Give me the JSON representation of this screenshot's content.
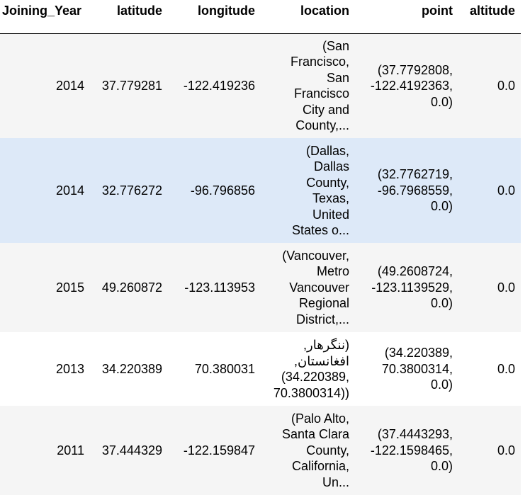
{
  "table": {
    "columns": [
      "Joining_Year",
      "latitude",
      "longitude",
      "location",
      "point",
      "altitude"
    ],
    "rows": [
      {
        "joining_year": "2014",
        "latitude": "37.779281",
        "longitude": "-122.419236",
        "location": [
          "(San",
          "Francisco,",
          "San",
          "Francisco",
          "City and",
          "County,..."
        ],
        "point": [
          "(37.7792808,",
          "-122.4192363,",
          "0.0)"
        ],
        "altitude": "0.0"
      },
      {
        "joining_year": "2014",
        "latitude": "32.776272",
        "longitude": "-96.796856",
        "location": [
          "(Dallas,",
          "Dallas",
          "County,",
          "Texas,",
          "United",
          "States o..."
        ],
        "point": [
          "(32.7762719,",
          "-96.7968559,",
          "0.0)"
        ],
        "altitude": "0.0"
      },
      {
        "joining_year": "2015",
        "latitude": "49.260872",
        "longitude": "-123.113953",
        "location": [
          "(Vancouver,",
          "Metro",
          "Vancouver",
          "Regional",
          "District,..."
        ],
        "point": [
          "(49.2608724,",
          "-123.1139529,",
          "0.0)"
        ],
        "altitude": "0.0"
      },
      {
        "joining_year": "2013",
        "latitude": "34.220389",
        "longitude": "70.380031",
        "location": [
          "(ننگرهار,",
          "افغانستان,",
          "(34.220389,",
          "70.3800314))"
        ],
        "point": [
          "(34.220389,",
          "70.3800314,",
          "0.0)"
        ],
        "altitude": "0.0"
      },
      {
        "joining_year": "2011",
        "latitude": "37.444329",
        "longitude": "-122.159847",
        "location": [
          "(Palo Alto,",
          "Santa Clara",
          "County,",
          "California,",
          "Un..."
        ],
        "point": [
          "(37.4443293,",
          "-122.1598465,",
          "0.0)"
        ],
        "altitude": "0.0"
      }
    ]
  }
}
